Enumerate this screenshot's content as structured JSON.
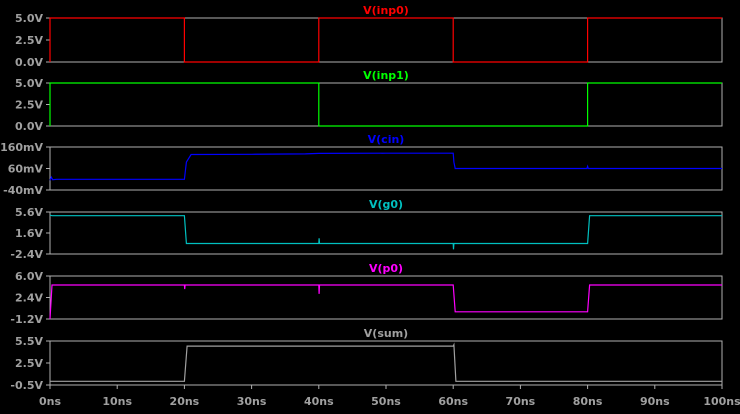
{
  "chart_data": [
    {
      "type": "line",
      "title": "V(inp0)",
      "color": "#ff0000",
      "ylim": [
        0,
        5
      ],
      "yticks": [
        {
          "value": 5,
          "label": "5.0V"
        },
        {
          "value": 2.5,
          "label": "2.5V"
        },
        {
          "value": 0,
          "label": "0.0V"
        }
      ],
      "series": [
        {
          "x": [
            0,
            0,
            20,
            20,
            40,
            40,
            60,
            60,
            80,
            80,
            100
          ],
          "y": [
            0,
            5,
            5,
            0,
            0,
            5,
            5,
            0,
            0,
            5,
            5
          ]
        }
      ]
    },
    {
      "type": "line",
      "title": "V(inp1)",
      "color": "#00ff00",
      "ylim": [
        0,
        5
      ],
      "yticks": [
        {
          "value": 5,
          "label": "5.0V"
        },
        {
          "value": 2.5,
          "label": "2.5V"
        },
        {
          "value": 0,
          "label": "0.0V"
        }
      ],
      "series": [
        {
          "x": [
            0,
            0,
            40,
            40,
            80,
            80,
            100
          ],
          "y": [
            0,
            5,
            5,
            0,
            0,
            5,
            5
          ]
        }
      ]
    },
    {
      "type": "line",
      "title": "V(cin)",
      "color": "#0000ff",
      "ylim": [
        -40,
        160
      ],
      "yticks": [
        {
          "value": 160,
          "label": "160mV"
        },
        {
          "value": 60,
          "label": "60mV"
        },
        {
          "value": -40,
          "label": "-40mV"
        }
      ],
      "series": [
        {
          "x": [
            0,
            0.2,
            0.4,
            1,
            20,
            20.3,
            21,
            30,
            38,
            40,
            50,
            60,
            60.1,
            60.3,
            79.9,
            80,
            80.1,
            100
          ],
          "y": [
            5,
            20,
            8,
            10,
            10,
            90,
            125,
            126,
            128,
            130,
            131,
            131,
            90,
            60,
            60,
            70,
            60,
            60
          ]
        }
      ]
    },
    {
      "type": "line",
      "title": "V(g0)",
      "color": "#00c0c0",
      "ylim": [
        -2.4,
        5.6
      ],
      "yticks": [
        {
          "value": 5.6,
          "label": "5.6V"
        },
        {
          "value": 1.6,
          "label": "1.6V"
        },
        {
          "value": -2.4,
          "label": "-2.4V"
        }
      ],
      "series": [
        {
          "x": [
            0,
            0.3,
            20,
            20.3,
            40,
            40.05,
            40.1,
            60,
            60.05,
            60.1,
            80,
            80.3,
            100
          ],
          "y": [
            5,
            4.9,
            4.9,
            -0.4,
            -0.4,
            0.6,
            -0.4,
            -0.4,
            -1.5,
            -0.4,
            -0.4,
            4.9,
            4.9
          ]
        }
      ]
    },
    {
      "type": "line",
      "title": "V(p0)",
      "color": "#ff00ff",
      "ylim": [
        -1.2,
        6.0
      ],
      "yticks": [
        {
          "value": 6.0,
          "label": "6.0V"
        },
        {
          "value": 2.4,
          "label": "2.4V"
        },
        {
          "value": -1.2,
          "label": "-1.2V"
        }
      ],
      "series": [
        {
          "x": [
            0,
            0.3,
            20,
            20.05,
            20.1,
            40,
            40.05,
            40.1,
            60,
            60.3,
            80,
            80.3,
            100
          ],
          "y": [
            -1.2,
            4.5,
            4.5,
            3.8,
            4.5,
            4.5,
            3.0,
            4.5,
            4.5,
            0,
            0,
            4.5,
            4.5
          ]
        }
      ]
    },
    {
      "type": "line",
      "title": "V(sum)",
      "color": "#a0a0a0",
      "ylim": [
        -0.5,
        5.5
      ],
      "yticks": [
        {
          "value": 5.5,
          "label": "5.5V"
        },
        {
          "value": 2.5,
          "label": "2.5V"
        },
        {
          "value": -0.5,
          "label": "-0.5V"
        }
      ],
      "series": [
        {
          "x": [
            0,
            20,
            20.4,
            60,
            60.1,
            60.4,
            100
          ],
          "y": [
            0,
            0,
            4.8,
            4.8,
            5.0,
            0,
            0
          ]
        }
      ]
    }
  ],
  "x_axis": {
    "xlim": [
      0,
      100
    ],
    "ticks": [
      {
        "value": 0,
        "label": "0ns"
      },
      {
        "value": 10,
        "label": "10ns"
      },
      {
        "value": 20,
        "label": "20ns"
      },
      {
        "value": 30,
        "label": "30ns"
      },
      {
        "value": 40,
        "label": "40ns"
      },
      {
        "value": 50,
        "label": "50ns"
      },
      {
        "value": 60,
        "label": "60ns"
      },
      {
        "value": 70,
        "label": "70ns"
      },
      {
        "value": 80,
        "label": "80ns"
      },
      {
        "value": 90,
        "label": "90ns"
      },
      {
        "value": 100,
        "label": "100ns"
      }
    ]
  },
  "colors": {
    "background": "#000000",
    "frame": "#b0b0b0",
    "label": "#a0a0a0"
  }
}
